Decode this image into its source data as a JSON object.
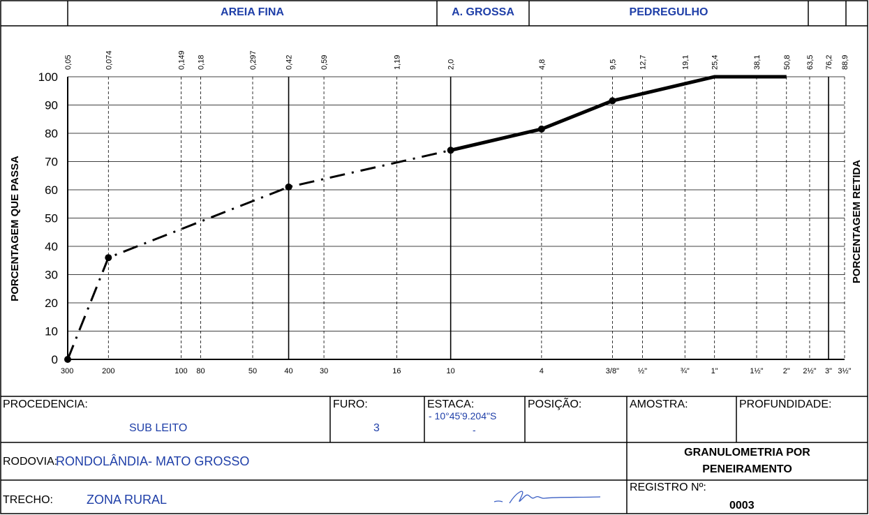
{
  "header": {
    "fine_sand": "AREIA FINA",
    "coarse_sand": "A. GROSSA",
    "gravel": "PEDREGULHO"
  },
  "chart_data": {
    "type": "line",
    "title": "",
    "ylabel_left": "PORCENTAGEM  QUE  PASSA",
    "ylabel_right": "PORCENTAGEM  RETIDA",
    "ylim": [
      0,
      100
    ],
    "x_scale": "log",
    "xlim_mm": [
      0.05,
      88.9
    ],
    "y_ticks": [
      "0",
      "10",
      "20",
      "30",
      "40",
      "50",
      "60",
      "70",
      "80",
      "90",
      "100"
    ],
    "top_ticks": [
      {
        "mm": 0.05,
        "label": "0,05"
      },
      {
        "mm": 0.074,
        "label": "0,074"
      },
      {
        "mm": 0.149,
        "label": "0,149"
      },
      {
        "mm": 0.18,
        "label": "0,18"
      },
      {
        "mm": 0.297,
        "label": "0,297"
      },
      {
        "mm": 0.42,
        "label": "0,42"
      },
      {
        "mm": 0.59,
        "label": "0,59"
      },
      {
        "mm": 1.19,
        "label": "1,19"
      },
      {
        "mm": 2.0,
        "label": "2,0"
      },
      {
        "mm": 4.8,
        "label": "4,8"
      },
      {
        "mm": 9.5,
        "label": "9,5"
      },
      {
        "mm": 12.7,
        "label": "12,7"
      },
      {
        "mm": 19.1,
        "label": "19,1"
      },
      {
        "mm": 25.4,
        "label": "25,4"
      },
      {
        "mm": 38.1,
        "label": "38,1"
      },
      {
        "mm": 50.8,
        "label": "50,8"
      },
      {
        "mm": 63.5,
        "label": "63,5"
      },
      {
        "mm": 76.2,
        "label": "76,2"
      },
      {
        "mm": 88.9,
        "label": "88,9"
      }
    ],
    "bottom_ticks": [
      {
        "mm": 0.05,
        "label": "300"
      },
      {
        "mm": 0.074,
        "label": "200"
      },
      {
        "mm": 0.149,
        "label": "100"
      },
      {
        "mm": 0.18,
        "label": "80"
      },
      {
        "mm": 0.297,
        "label": "50"
      },
      {
        "mm": 0.42,
        "label": "40"
      },
      {
        "mm": 0.59,
        "label": "30"
      },
      {
        "mm": 1.19,
        "label": "16"
      },
      {
        "mm": 2.0,
        "label": "10"
      },
      {
        "mm": 4.8,
        "label": "4"
      },
      {
        "mm": 9.5,
        "label": "3/8\""
      },
      {
        "mm": 12.7,
        "label": "½\""
      },
      {
        "mm": 19.1,
        "label": "¾\""
      },
      {
        "mm": 25.4,
        "label": "1\""
      },
      {
        "mm": 38.1,
        "label": "1½\""
      },
      {
        "mm": 50.8,
        "label": "2\""
      },
      {
        "mm": 63.5,
        "label": "2½\""
      },
      {
        "mm": 76.2,
        "label": "3\""
      },
      {
        "mm": 88.9,
        "label": "3½\""
      }
    ],
    "solid_gridlines_mm": [
      0.42,
      2.0,
      76.2
    ],
    "series": [
      {
        "style": "dash-dot",
        "points": [
          {
            "x": 0.05,
            "y": 0
          },
          {
            "x": 0.074,
            "y": 36
          },
          {
            "x": 0.42,
            "y": 61
          },
          {
            "x": 2.0,
            "y": 74
          }
        ]
      },
      {
        "style": "solid",
        "points": [
          {
            "x": 2.0,
            "y": 74
          },
          {
            "x": 4.8,
            "y": 81.5
          },
          {
            "x": 9.5,
            "y": 91.5
          },
          {
            "x": 25.4,
            "y": 100
          },
          {
            "x": 50.8,
            "y": 100
          }
        ]
      }
    ],
    "markers": [
      {
        "x": 0.05,
        "y": 0
      },
      {
        "x": 0.074,
        "y": 36
      },
      {
        "x": 0.42,
        "y": 61
      },
      {
        "x": 2.0,
        "y": 74
      },
      {
        "x": 4.8,
        "y": 81.5
      },
      {
        "x": 9.5,
        "y": 91.5
      }
    ]
  },
  "footer": {
    "procedencia_label": "PROCEDENCIA:",
    "procedencia_value": "SUB LEITO",
    "furo_label": "FURO:",
    "furo_value": "3",
    "estaca_label": "ESTACA:",
    "estaca_value": "- 10°45'9.204\"S",
    "estaca_value2": "-",
    "posicao_label": "POSIÇÃO:",
    "amostra_label": "AMOSTRA:",
    "profundidade_label": "PROFUNDIDADE:",
    "rodovia_label": "RODOVIA:",
    "rodovia_value": "RONDOLÂNDIA- MATO GROSSO",
    "granulometria_line1": "GRANULOMETRIA POR",
    "granulometria_line2": "PENEIRAMENTO",
    "trecho_label": "TRECHO:",
    "trecho_value": "ZONA RURAL",
    "registro_label": "REGISTRO Nº:",
    "registro_value": "0003"
  }
}
